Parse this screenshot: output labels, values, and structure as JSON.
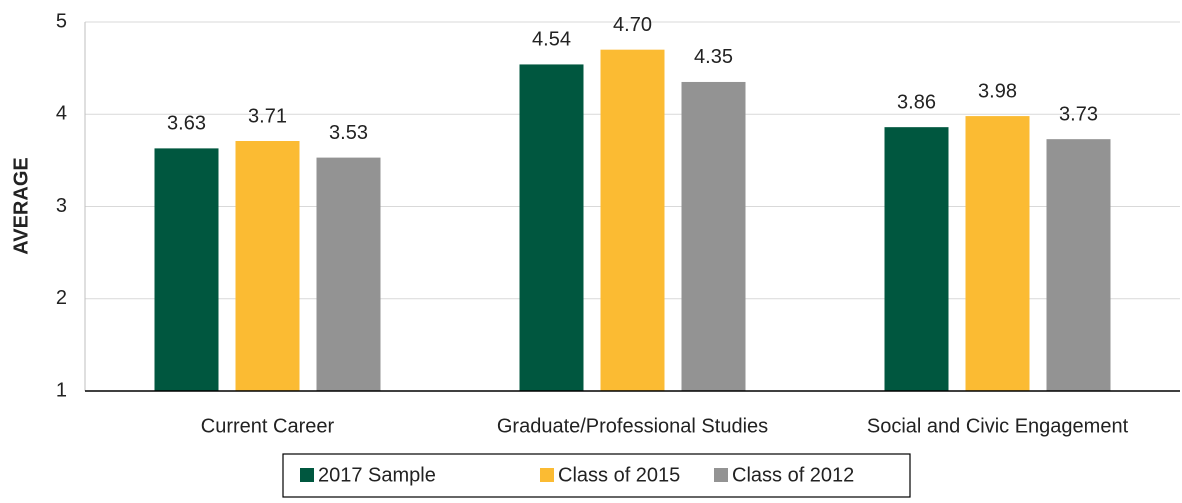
{
  "chart_data": {
    "type": "bar",
    "y_label": "AVERAGE",
    "categories": [
      "Current Career",
      "Graduate/Professional Studies",
      "Social and Civic Engagement"
    ],
    "series": [
      {
        "name": "2017 Sample",
        "color": "#00573f",
        "values": [
          3.63,
          4.54,
          3.86
        ],
        "value_labels": [
          "3.63",
          "4.54",
          "3.86"
        ]
      },
      {
        "name": "Class of 2015",
        "color": "#fbbb33",
        "values": [
          3.71,
          4.7,
          3.98
        ],
        "value_labels": [
          "3.71",
          "4.70",
          "3.98"
        ]
      },
      {
        "name": "Class of 2012",
        "color": "#939393",
        "values": [
          3.53,
          4.35,
          3.73
        ],
        "value_labels": [
          "3.53",
          "4.35",
          "3.73"
        ]
      }
    ],
    "ylim": [
      1,
      5
    ],
    "yticks": [
      1,
      2,
      3,
      4,
      5
    ],
    "grid": true,
    "legend": "bottom"
  }
}
